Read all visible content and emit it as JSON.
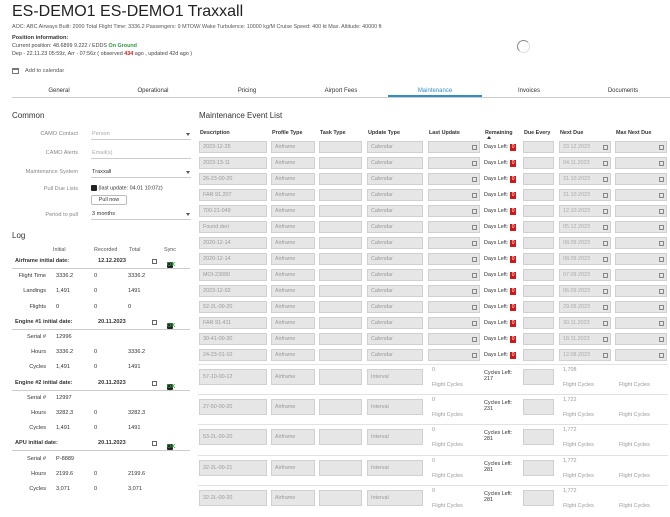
{
  "header": {
    "title": "ES-DEMO1 ES-DEMO1 Traxxall",
    "meta": "AOC: ABC Airways   Built: 2000   Total Flight Time: 3336.2   Passengers: 9   MTOW/ Wake Turbulence: 10000 kg/M   Cruise Speed: 400 kt   Max. Altitude: 40000 ft",
    "pos_title": "Position information:",
    "pos_current": "Current position: 48.6899 9.222 / EDDS",
    "pos_status": "On Ground",
    "pos_dep_pre": "Dep - 22.11.23 05:59z, Arr - 07:56z ( observed",
    "pos_dep_red": "434",
    "pos_dep_post": "ago , updated 42d ago )",
    "add_calendar": "Add to calendar"
  },
  "tabs": [
    "General",
    "Operational",
    "Pricing",
    "Airport Fees",
    "Maintenance",
    "Invoices",
    "Documents"
  ],
  "active_tab": "Maintenance",
  "common": {
    "title": "Common",
    "fields": [
      {
        "label": "CAMO Contact",
        "value": "Person",
        "placeholder": true,
        "dropdown": true
      },
      {
        "label": "CAMO Alerts",
        "value": "Email(s)",
        "placeholder": true,
        "dropdown": false
      },
      {
        "label": "Maintenance System",
        "value": "Traxxall",
        "placeholder": false,
        "dropdown": true
      }
    ],
    "pull_label": "Pull Due Lists",
    "pull_text": "(last update: 04.01 10:07z)",
    "pull_button": "Pull now",
    "period_label": "Period to pull",
    "period_value": "3 months"
  },
  "log": {
    "title": "Log",
    "cols": [
      "Initial",
      "Recorded",
      "Total",
      "Sync"
    ],
    "rows": [
      {
        "type": "hdr",
        "label": "Airframe initial date:",
        "date": "12.12.2023",
        "ok": "OK"
      },
      {
        "type": "row",
        "label": "Flight Time",
        "initial": "3336.2",
        "recorded": "0",
        "total": "3336.2"
      },
      {
        "type": "row",
        "label": "Landings",
        "initial": "1,491",
        "recorded": "0",
        "total": "1491"
      },
      {
        "type": "row",
        "label": "Flights",
        "initial": "0",
        "recorded": "0",
        "total": "0"
      },
      {
        "type": "hdr",
        "label": "Engine #1 initial date:",
        "date": "20.11.2023",
        "ok": "OK"
      },
      {
        "type": "row",
        "label": "Serial #",
        "initial": "12996",
        "recorded": "",
        "total": ""
      },
      {
        "type": "row",
        "label": "Hours",
        "initial": "3336.2",
        "recorded": "0",
        "total": "3336.2"
      },
      {
        "type": "row",
        "label": "Cycles",
        "initial": "1,491",
        "recorded": "0",
        "total": "1491"
      },
      {
        "type": "hdr",
        "label": "Engine #2 initial date:",
        "date": "20.11.2023",
        "ok": "OK"
      },
      {
        "type": "row",
        "label": "Serial #",
        "initial": "12997",
        "recorded": "",
        "total": ""
      },
      {
        "type": "row",
        "label": "Hours",
        "initial": "3282.3",
        "recorded": "0",
        "total": "3282.3"
      },
      {
        "type": "row",
        "label": "Cycles",
        "initial": "1,491",
        "recorded": "0",
        "total": "1491"
      },
      {
        "type": "hdr",
        "label": "APU initial date:",
        "date": "20.11.2023",
        "ok": "OK"
      },
      {
        "type": "row",
        "label": "Serial #",
        "initial": "P-8889",
        "recorded": "",
        "total": ""
      },
      {
        "type": "row",
        "label": "Hours",
        "initial": "2199.6",
        "recorded": "0",
        "total": "2199.6"
      },
      {
        "type": "row",
        "label": "Cycles",
        "initial": "3,071",
        "recorded": "0",
        "total": "3,071"
      }
    ]
  },
  "mel": {
    "title": "Maintenance Event List",
    "cols": [
      "Description",
      "Profile Type",
      "Task Type",
      "Update Type",
      "Last Update",
      "Remaining",
      "Due Every",
      "Next Due",
      "Max Next Due"
    ],
    "remaining_prefix": "Days Left:",
    "rows": [
      {
        "desc": "2023-12-25",
        "profile": "Airframe",
        "update": "Calendar",
        "left": "0",
        "next": "23.12.2023"
      },
      {
        "desc": "2023-13-11",
        "profile": "Airframe",
        "update": "Calendar",
        "left": "0",
        "next": "04.11.2023"
      },
      {
        "desc": "26-23-00-20",
        "profile": "Airframe",
        "update": "Calendar",
        "left": "0",
        "next": "31.10.2023"
      },
      {
        "desc": "FAR 91.207",
        "profile": "Airframe",
        "update": "Calendar",
        "left": "0",
        "next": "31.10.2023"
      },
      {
        "desc": "700-21-049",
        "profile": "Airframe",
        "update": "Calendar",
        "left": "0",
        "next": "12.10.2023"
      },
      {
        "desc": "Found deri",
        "profile": "Airframe",
        "update": "Calendar",
        "left": "0",
        "next": "05.12.2023"
      },
      {
        "desc": "2020-12-14",
        "profile": "Airframe",
        "update": "Calendar",
        "left": "0",
        "next": "08.09.2023"
      },
      {
        "desc": "2020-12-14",
        "profile": "Airframe",
        "update": "Calendar",
        "left": "0",
        "next": "08.09.2023"
      },
      {
        "desc": "MOI-23090",
        "profile": "Airframe",
        "update": "Calendar",
        "left": "0",
        "next": "07.09.2023"
      },
      {
        "desc": "2023-12-02",
        "profile": "Airframe",
        "update": "Calendar",
        "left": "0",
        "next": "06.09.2023"
      },
      {
        "desc": "52-2L-00-20",
        "profile": "Airframe",
        "update": "Calendar",
        "left": "0",
        "next": "29.08.2023"
      },
      {
        "desc": "FAR 91.411",
        "profile": "Airframe",
        "update": "Calendar",
        "left": "0",
        "next": "30.11.2023"
      },
      {
        "desc": "30-41-00-30",
        "profile": "Airframe",
        "update": "Calendar",
        "left": "0",
        "next": "18.11.2023"
      },
      {
        "desc": "24-23-01-10",
        "profile": "Airframe",
        "update": "Calendar",
        "left": "0",
        "next": "12.08.2023"
      }
    ],
    "interval_rows": [
      {
        "desc": "57-10-00-12",
        "profile": "Airframe",
        "update": "Interval",
        "last": "0",
        "cycles": "217",
        "next": "1,708"
      },
      {
        "desc": "27-50-00-20",
        "profile": "Airframe",
        "update": "Interval",
        "last": "0",
        "cycles": "231",
        "next": "1,722"
      },
      {
        "desc": "53-2L-00-20",
        "profile": "Airframe",
        "update": "Interval",
        "last": "0",
        "cycles": "281",
        "next": "1,772"
      },
      {
        "desc": "32-2L-00-21",
        "profile": "Airframe",
        "update": "Interval",
        "last": "0",
        "cycles": "281",
        "next": "1,772"
      },
      {
        "desc": "32-2L-00-20",
        "profile": "Airframe",
        "update": "Interval",
        "last": "0",
        "cycles": "281",
        "next": "1,772"
      }
    ],
    "flight_cycles": "Flight Cycles",
    "cycles_left": "Cycles Left:"
  }
}
